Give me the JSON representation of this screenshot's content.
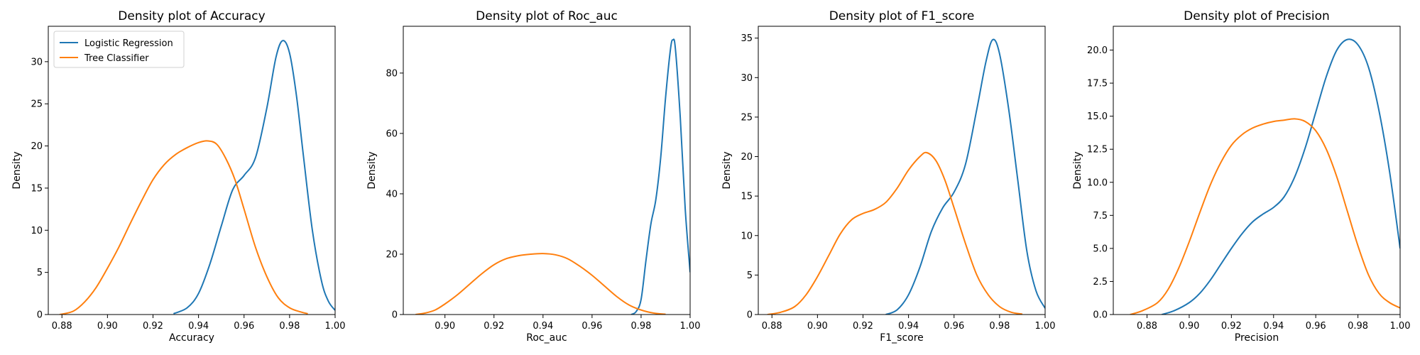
{
  "colors": {
    "logistic": "#1f77b4",
    "tree": "#ff7f0e"
  },
  "legend": [
    {
      "label": "Logistic Regression",
      "color": "#1f77b4"
    },
    {
      "label": "Tree Classifier",
      "color": "#ff7f0e"
    }
  ],
  "chart_data": [
    {
      "type": "line",
      "title": "Density plot of Accuracy",
      "xlabel": "Accuracy",
      "ylabel": "Density",
      "xlim": [
        0.874,
        1.0
      ],
      "ylim": [
        0,
        34.2
      ],
      "xticks": [
        0.88,
        0.9,
        0.92,
        0.94,
        0.96,
        0.98,
        1.0
      ],
      "xtick_labels": [
        "0.88",
        "0.90",
        "0.92",
        "0.94",
        "0.96",
        "0.98",
        "1.00"
      ],
      "yticks": [
        0,
        5,
        10,
        15,
        20,
        25,
        30
      ],
      "ytick_labels": [
        "0",
        "5",
        "10",
        "15",
        "20",
        "25",
        "30"
      ],
      "legend": true,
      "series": [
        {
          "name": "Logistic Regression",
          "color": "#1f77b4",
          "points": [
            [
              0.929,
              0.1
            ],
            [
              0.935,
              0.8
            ],
            [
              0.94,
              2.5
            ],
            [
              0.945,
              6
            ],
            [
              0.95,
              10.5
            ],
            [
              0.955,
              14.8
            ],
            [
              0.96,
              16.5
            ],
            [
              0.965,
              18.6
            ],
            [
              0.97,
              24.5
            ],
            [
              0.974,
              30.5
            ],
            [
              0.977,
              32.5
            ],
            [
              0.98,
              31
            ],
            [
              0.983,
              26
            ],
            [
              0.986,
              19
            ],
            [
              0.99,
              10
            ],
            [
              0.994,
              4
            ],
            [
              0.997,
              1.6
            ],
            [
              1.0,
              0.5
            ]
          ]
        },
        {
          "name": "Tree Classifier",
          "color": "#ff7f0e",
          "points": [
            [
              0.879,
              0
            ],
            [
              0.885,
              0.4
            ],
            [
              0.89,
              1.5
            ],
            [
              0.895,
              3.2
            ],
            [
              0.9,
              5.5
            ],
            [
              0.905,
              8.0
            ],
            [
              0.91,
              10.8
            ],
            [
              0.915,
              13.5
            ],
            [
              0.92,
              16.0
            ],
            [
              0.925,
              17.8
            ],
            [
              0.93,
              19.0
            ],
            [
              0.935,
              19.8
            ],
            [
              0.94,
              20.4
            ],
            [
              0.944,
              20.6
            ],
            [
              0.948,
              20.2
            ],
            [
              0.952,
              18.5
            ],
            [
              0.956,
              16.0
            ],
            [
              0.96,
              12.5
            ],
            [
              0.965,
              8.0
            ],
            [
              0.97,
              4.5
            ],
            [
              0.975,
              2.0
            ],
            [
              0.98,
              0.8
            ],
            [
              0.985,
              0.3
            ],
            [
              0.988,
              0.1
            ]
          ]
        }
      ]
    },
    {
      "type": "line",
      "title": "Density plot of Roc_auc",
      "xlabel": "Roc_auc",
      "ylabel": "Density",
      "xlim": [
        0.883,
        1.0
      ],
      "ylim": [
        0,
        95.5
      ],
      "xticks": [
        0.9,
        0.92,
        0.94,
        0.96,
        0.98,
        1.0
      ],
      "xtick_labels": [
        "0.90",
        "0.92",
        "0.94",
        "0.96",
        "0.98",
        "1.00"
      ],
      "yticks": [
        0,
        20,
        40,
        60,
        80
      ],
      "ytick_labels": [
        "0",
        "20",
        "40",
        "60",
        "80"
      ],
      "legend": false,
      "series": [
        {
          "name": "Logistic Regression",
          "color": "#1f77b4",
          "points": [
            [
              0.976,
              0
            ],
            [
              0.978,
              1
            ],
            [
              0.98,
              5
            ],
            [
              0.982,
              18
            ],
            [
              0.984,
              30
            ],
            [
              0.986,
              38
            ],
            [
              0.988,
              52
            ],
            [
              0.99,
              72
            ],
            [
              0.992,
              88
            ],
            [
              0.993,
              91
            ],
            [
              0.994,
              88
            ],
            [
              0.996,
              65
            ],
            [
              0.998,
              35
            ],
            [
              1.0,
              14
            ]
          ]
        },
        {
          "name": "Tree Classifier",
          "color": "#ff7f0e",
          "points": [
            [
              0.888,
              0
            ],
            [
              0.892,
              0.5
            ],
            [
              0.896,
              1.5
            ],
            [
              0.9,
              3.5
            ],
            [
              0.905,
              6.5
            ],
            [
              0.91,
              10
            ],
            [
              0.915,
              13.5
            ],
            [
              0.92,
              16.5
            ],
            [
              0.925,
              18.5
            ],
            [
              0.93,
              19.5
            ],
            [
              0.935,
              20
            ],
            [
              0.94,
              20.2
            ],
            [
              0.945,
              19.8
            ],
            [
              0.95,
              18.5
            ],
            [
              0.955,
              16
            ],
            [
              0.96,
              13
            ],
            [
              0.965,
              9.5
            ],
            [
              0.97,
              6
            ],
            [
              0.975,
              3.2
            ],
            [
              0.98,
              1.5
            ],
            [
              0.985,
              0.5
            ],
            [
              0.99,
              0.1
            ]
          ]
        }
      ]
    },
    {
      "type": "line",
      "title": "Density plot of F1_score",
      "xlabel": "F1_score",
      "ylabel": "Density",
      "xlim": [
        0.874,
        1.0
      ],
      "ylim": [
        0,
        36.5
      ],
      "xticks": [
        0.88,
        0.9,
        0.92,
        0.94,
        0.96,
        0.98,
        1.0
      ],
      "xtick_labels": [
        "0.88",
        "0.90",
        "0.92",
        "0.94",
        "0.96",
        "0.98",
        "1.00"
      ],
      "yticks": [
        0,
        5,
        10,
        15,
        20,
        25,
        30,
        35
      ],
      "ytick_labels": [
        "0",
        "5",
        "10",
        "15",
        "20",
        "25",
        "30",
        "35"
      ],
      "legend": false,
      "series": [
        {
          "name": "Logistic Regression",
          "color": "#1f77b4",
          "points": [
            [
              0.93,
              0
            ],
            [
              0.935,
              0.6
            ],
            [
              0.94,
              2.5
            ],
            [
              0.945,
              6
            ],
            [
              0.95,
              10.5
            ],
            [
              0.955,
              13.5
            ],
            [
              0.96,
              15.5
            ],
            [
              0.965,
              19
            ],
            [
              0.97,
              26
            ],
            [
              0.974,
              32
            ],
            [
              0.977,
              34.8
            ],
            [
              0.98,
              33
            ],
            [
              0.984,
              26
            ],
            [
              0.988,
              17
            ],
            [
              0.992,
              8
            ],
            [
              0.996,
              3
            ],
            [
              1.0,
              0.8
            ]
          ]
        },
        {
          "name": "Tree Classifier",
          "color": "#ff7f0e",
          "points": [
            [
              0.878,
              0
            ],
            [
              0.884,
              0.3
            ],
            [
              0.89,
              1
            ],
            [
              0.895,
              2.5
            ],
            [
              0.9,
              4.8
            ],
            [
              0.905,
              7.5
            ],
            [
              0.91,
              10.2
            ],
            [
              0.915,
              12
            ],
            [
              0.92,
              12.8
            ],
            [
              0.925,
              13.3
            ],
            [
              0.93,
              14.2
            ],
            [
              0.935,
              16
            ],
            [
              0.94,
              18.3
            ],
            [
              0.945,
              20
            ],
            [
              0.948,
              20.5
            ],
            [
              0.952,
              19.5
            ],
            [
              0.956,
              17
            ],
            [
              0.96,
              13.5
            ],
            [
              0.965,
              9
            ],
            [
              0.97,
              5
            ],
            [
              0.975,
              2.5
            ],
            [
              0.98,
              1
            ],
            [
              0.985,
              0.3
            ],
            [
              0.99,
              0.05
            ]
          ]
        }
      ]
    },
    {
      "type": "line",
      "title": "Density plot of Precision",
      "xlabel": "Precision",
      "ylabel": "Density",
      "xlim": [
        0.864,
        1.0
      ],
      "ylim": [
        0,
        21.8
      ],
      "xticks": [
        0.88,
        0.9,
        0.92,
        0.94,
        0.96,
        0.98,
        1.0
      ],
      "xtick_labels": [
        "0.88",
        "0.90",
        "0.92",
        "0.94",
        "0.96",
        "0.98",
        "1.00"
      ],
      "yticks": [
        0,
        2.5,
        5,
        7.5,
        10,
        12.5,
        15,
        17.5,
        20
      ],
      "ytick_labels": [
        "0.0",
        "2.5",
        "5.0",
        "7.5",
        "10.0",
        "12.5",
        "15.0",
        "17.5",
        "20.0"
      ],
      "legend": false,
      "series": [
        {
          "name": "Logistic Regression",
          "color": "#1f77b4",
          "points": [
            [
              0.887,
              0
            ],
            [
              0.893,
              0.3
            ],
            [
              0.9,
              0.9
            ],
            [
              0.905,
              1.6
            ],
            [
              0.91,
              2.6
            ],
            [
              0.915,
              3.8
            ],
            [
              0.92,
              5
            ],
            [
              0.925,
              6.1
            ],
            [
              0.93,
              7
            ],
            [
              0.935,
              7.6
            ],
            [
              0.94,
              8.1
            ],
            [
              0.945,
              8.9
            ],
            [
              0.95,
              10.4
            ],
            [
              0.955,
              12.6
            ],
            [
              0.96,
              15.3
            ],
            [
              0.965,
              18
            ],
            [
              0.97,
              20
            ],
            [
              0.975,
              20.8
            ],
            [
              0.98,
              20.4
            ],
            [
              0.985,
              18.7
            ],
            [
              0.99,
              15.4
            ],
            [
              0.995,
              10.8
            ],
            [
              1.0,
              5
            ]
          ]
        },
        {
          "name": "Tree Classifier",
          "color": "#ff7f0e",
          "points": [
            [
              0.872,
              0
            ],
            [
              0.878,
              0.3
            ],
            [
              0.885,
              0.9
            ],
            [
              0.89,
              1.9
            ],
            [
              0.895,
              3.5
            ],
            [
              0.9,
              5.5
            ],
            [
              0.905,
              7.7
            ],
            [
              0.91,
              9.8
            ],
            [
              0.915,
              11.5
            ],
            [
              0.92,
              12.8
            ],
            [
              0.925,
              13.6
            ],
            [
              0.93,
              14.1
            ],
            [
              0.935,
              14.4
            ],
            [
              0.94,
              14.6
            ],
            [
              0.945,
              14.7
            ],
            [
              0.95,
              14.8
            ],
            [
              0.955,
              14.6
            ],
            [
              0.96,
              13.9
            ],
            [
              0.965,
              12.5
            ],
            [
              0.97,
              10.4
            ],
            [
              0.975,
              7.8
            ],
            [
              0.98,
              5.2
            ],
            [
              0.985,
              3
            ],
            [
              0.99,
              1.6
            ],
            [
              0.995,
              0.9
            ],
            [
              1.0,
              0.5
            ]
          ]
        }
      ]
    }
  ]
}
